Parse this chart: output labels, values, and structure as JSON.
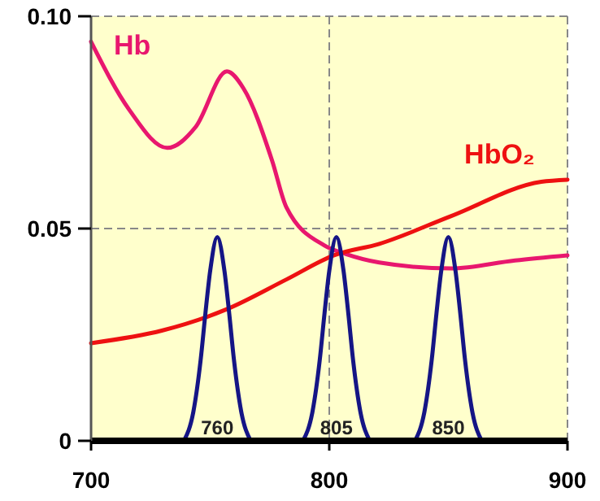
{
  "chart_data": {
    "type": "line",
    "xlim": [
      700,
      900
    ],
    "ylim": [
      0,
      0.1
    ],
    "xticks": [
      700,
      800,
      900
    ],
    "yticks": [
      0,
      0.05,
      {
        "value": 0.1,
        "label": "0.10"
      }
    ],
    "grid": true,
    "marker": "none",
    "series": [
      {
        "name": "Hb",
        "color": "#e8176e",
        "x": [
          700,
          716,
          732,
          744,
          757,
          764,
          776,
          782,
          798,
          807,
          821,
          851,
          878,
          900
        ],
        "values": [
          0.094,
          0.078,
          0.069,
          0.074,
          0.087,
          0.083,
          0.066,
          0.055,
          0.046,
          0.044,
          0.042,
          0.0406,
          0.0425,
          0.0437
        ]
      },
      {
        "name": "HbO₂",
        "color": "#ee1111",
        "x": [
          700,
          730,
          757,
          782,
          802,
          821,
          851,
          889,
          900
        ],
        "values": [
          0.023,
          0.026,
          0.031,
          0.038,
          0.0437,
          0.0464,
          0.0529,
          0.061,
          0.0615
        ]
      },
      {
        "color": "#151585",
        "x": [
          739,
          743,
          746,
          748,
          750,
          753,
          756,
          758,
          760,
          763,
          767
        ],
        "values": [
          0,
          0.007,
          0.019,
          0.03,
          0.04,
          0.048,
          0.04,
          0.03,
          0.019,
          0.007,
          0
        ]
      },
      {
        "color": "#151585",
        "x": [
          789,
          793,
          796,
          798,
          800,
          803,
          806,
          808,
          810,
          813,
          817
        ],
        "values": [
          0,
          0.007,
          0.019,
          0.03,
          0.04,
          0.048,
          0.04,
          0.03,
          0.019,
          0.007,
          0
        ]
      },
      {
        "color": "#151585",
        "x": [
          836,
          840,
          843,
          845,
          847,
          850,
          853,
          855,
          857,
          860,
          864
        ],
        "values": [
          0,
          0.007,
          0.019,
          0.03,
          0.04,
          0.048,
          0.04,
          0.03,
          0.019,
          0.007,
          0
        ]
      }
    ],
    "annotations": [
      "760",
      "805",
      "850"
    ]
  }
}
